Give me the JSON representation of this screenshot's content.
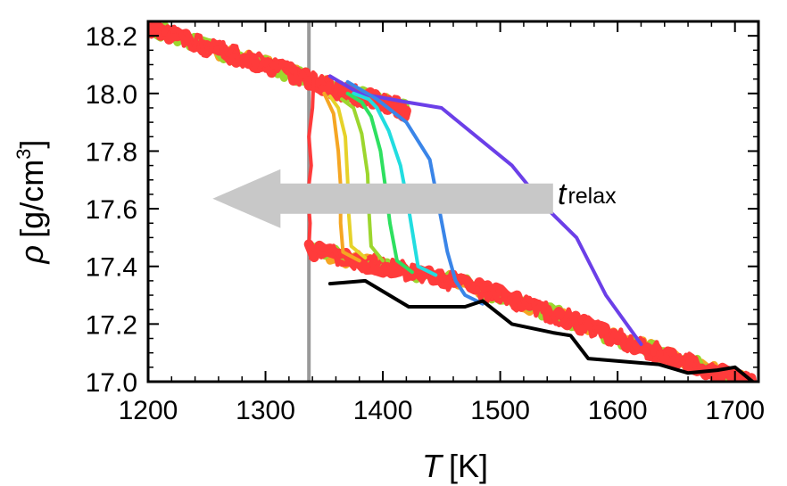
{
  "chart_data": {
    "type": "line",
    "xlabel_symbol": "T",
    "xlabel_unit": "[K]",
    "ylabel_symbol": "ρ",
    "ylabel_unit_prefix": "[g/cm",
    "ylabel_unit_sup": "3",
    "ylabel_unit_suffix": "]",
    "xlim": [
      1200,
      1720
    ],
    "ylim": [
      17.0,
      18.25
    ],
    "xticks": [
      1200,
      1300,
      1400,
      1500,
      1600,
      1700
    ],
    "yticks": [
      17.0,
      17.2,
      17.4,
      17.6,
      17.8,
      18.0,
      18.2
    ],
    "xtick_labels": [
      "1200",
      "1300",
      "1400",
      "1500",
      "1600",
      "1700"
    ],
    "ytick_labels": [
      "17.0",
      "17.2",
      "17.4",
      "17.6",
      "17.8",
      "18.0",
      "18.2"
    ],
    "grid": false,
    "vertical_line": {
      "x": 1337,
      "color": "#999999"
    },
    "annotation": {
      "symbol": "t",
      "subscript": "relax",
      "arrow_from_x": 1545,
      "arrow_to_x": 1255,
      "arrow_y": 17.635,
      "arrow_color": "#c8c8c8"
    },
    "crystal_branch": [
      [
        1200,
        18.23
      ],
      [
        1250,
        18.16
      ],
      [
        1300,
        18.1
      ],
      [
        1337,
        18.05
      ],
      [
        1370,
        18.0
      ],
      [
        1400,
        17.97
      ],
      [
        1420,
        17.94
      ]
    ],
    "liquid_branch": [
      [
        1337,
        17.46
      ],
      [
        1400,
        17.4
      ],
      [
        1450,
        17.36
      ],
      [
        1500,
        17.3
      ],
      [
        1550,
        17.23
      ],
      [
        1600,
        17.15
      ],
      [
        1650,
        17.08
      ],
      [
        1700,
        17.01
      ],
      [
        1715,
        16.99
      ]
    ],
    "series": [
      {
        "color": "#6b3fe8",
        "x": [
          1355,
          1380,
          1420,
          1450,
          1480,
          1510,
          1540,
          1565,
          1590,
          1620
        ],
        "y": [
          18.06,
          18.0,
          17.97,
          17.95,
          17.85,
          17.75,
          17.6,
          17.5,
          17.3,
          17.13
        ]
      },
      {
        "color": "#3a85e8",
        "x": [
          1370,
          1395,
          1420,
          1440,
          1448,
          1455,
          1462,
          1470,
          1485
        ],
        "y": [
          18.04,
          17.98,
          17.9,
          17.77,
          17.6,
          17.45,
          17.35,
          17.3,
          17.27
        ]
      },
      {
        "color": "#22dde0",
        "x": [
          1375,
          1388,
          1395,
          1405,
          1415,
          1422,
          1430,
          1445
        ],
        "y": [
          18.0,
          17.98,
          17.95,
          17.87,
          17.75,
          17.6,
          17.4,
          17.37
        ]
      },
      {
        "color": "#2ee060",
        "x": [
          1370,
          1382,
          1390,
          1398,
          1402,
          1406,
          1412,
          1425
        ],
        "y": [
          18.0,
          17.97,
          17.92,
          17.8,
          17.68,
          17.55,
          17.42,
          17.38
        ]
      },
      {
        "color": "#9cd62e",
        "x": [
          1365,
          1375,
          1382,
          1387,
          1388,
          1390,
          1400
        ],
        "y": [
          17.98,
          17.95,
          17.86,
          17.72,
          17.6,
          17.47,
          17.42
        ]
      },
      {
        "color": "#e6d22a",
        "x": [
          1355,
          1362,
          1368,
          1370,
          1371,
          1373,
          1385
        ],
        "y": [
          17.99,
          17.95,
          17.85,
          17.7,
          17.58,
          17.47,
          17.43
        ]
      },
      {
        "color": "#f5a623",
        "x": [
          1350,
          1358,
          1362,
          1364,
          1364,
          1366,
          1380
        ],
        "y": [
          18.0,
          17.93,
          17.8,
          17.68,
          17.55,
          17.45,
          17.42
        ]
      },
      {
        "color": "#ff3b3b",
        "x": [
          1341,
          1340,
          1337,
          1339,
          1336,
          1338,
          1337,
          1345,
          1360
        ],
        "y": [
          18.05,
          17.95,
          17.85,
          17.75,
          17.65,
          17.55,
          17.47,
          17.45,
          17.43
        ]
      },
      {
        "color": "#000000",
        "x": [
          1355,
          1385,
          1422,
          1450,
          1470,
          1485,
          1510,
          1545,
          1560,
          1575,
          1605,
          1635,
          1660,
          1685,
          1700,
          1718
        ],
        "y": [
          17.34,
          17.35,
          17.26,
          17.26,
          17.26,
          17.28,
          17.2,
          17.17,
          17.16,
          17.08,
          17.07,
          17.06,
          17.03,
          17.04,
          17.05,
          16.99
        ]
      }
    ]
  }
}
